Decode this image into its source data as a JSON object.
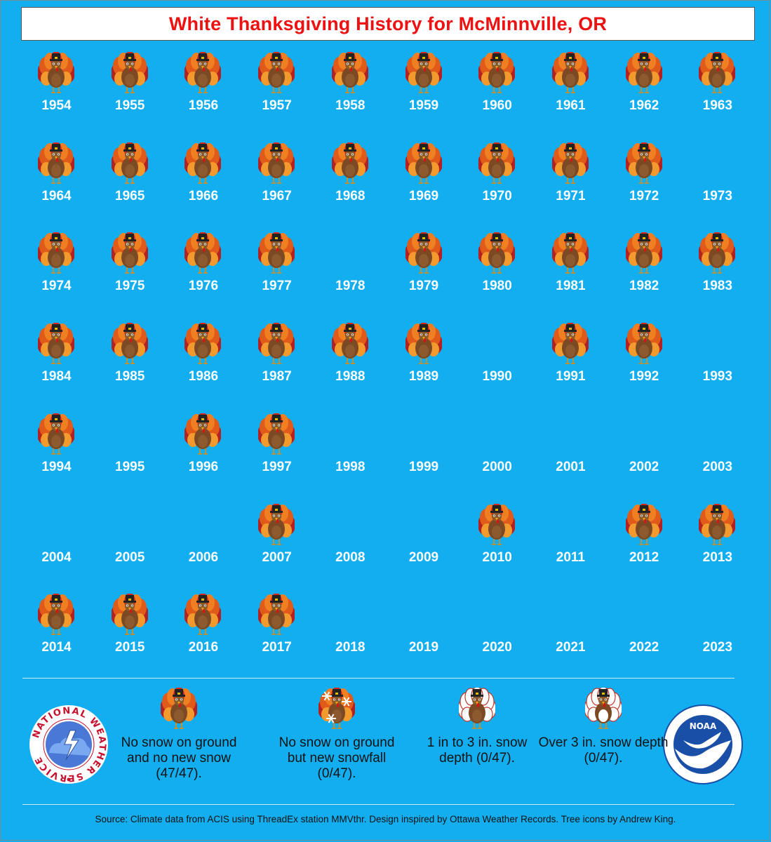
{
  "title": "White Thanksgiving History for McMinnville, OR",
  "years": [
    {
      "year": "1954",
      "category": "none"
    },
    {
      "year": "1955",
      "category": "none"
    },
    {
      "year": "1956",
      "category": "none"
    },
    {
      "year": "1957",
      "category": "none"
    },
    {
      "year": "1958",
      "category": "none"
    },
    {
      "year": "1959",
      "category": "none"
    },
    {
      "year": "1960",
      "category": "none"
    },
    {
      "year": "1961",
      "category": "none"
    },
    {
      "year": "1962",
      "category": "none"
    },
    {
      "year": "1963",
      "category": "none"
    },
    {
      "year": "1964",
      "category": "none"
    },
    {
      "year": "1965",
      "category": "none"
    },
    {
      "year": "1966",
      "category": "none"
    },
    {
      "year": "1967",
      "category": "none"
    },
    {
      "year": "1968",
      "category": "none"
    },
    {
      "year": "1969",
      "category": "none"
    },
    {
      "year": "1970",
      "category": "none"
    },
    {
      "year": "1971",
      "category": "none"
    },
    {
      "year": "1972",
      "category": "none"
    },
    {
      "year": "1973",
      "category": "missing"
    },
    {
      "year": "1974",
      "category": "none"
    },
    {
      "year": "1975",
      "category": "none"
    },
    {
      "year": "1976",
      "category": "none"
    },
    {
      "year": "1977",
      "category": "none"
    },
    {
      "year": "1978",
      "category": "missing"
    },
    {
      "year": "1979",
      "category": "none"
    },
    {
      "year": "1980",
      "category": "none"
    },
    {
      "year": "1981",
      "category": "none"
    },
    {
      "year": "1982",
      "category": "none"
    },
    {
      "year": "1983",
      "category": "none"
    },
    {
      "year": "1984",
      "category": "none"
    },
    {
      "year": "1985",
      "category": "none"
    },
    {
      "year": "1986",
      "category": "none"
    },
    {
      "year": "1987",
      "category": "none"
    },
    {
      "year": "1988",
      "category": "none"
    },
    {
      "year": "1989",
      "category": "none"
    },
    {
      "year": "1990",
      "category": "missing"
    },
    {
      "year": "1991",
      "category": "none"
    },
    {
      "year": "1992",
      "category": "none"
    },
    {
      "year": "1993",
      "category": "missing"
    },
    {
      "year": "1994",
      "category": "none"
    },
    {
      "year": "1995",
      "category": "missing"
    },
    {
      "year": "1996",
      "category": "none"
    },
    {
      "year": "1997",
      "category": "none"
    },
    {
      "year": "1998",
      "category": "missing"
    },
    {
      "year": "1999",
      "category": "missing"
    },
    {
      "year": "2000",
      "category": "missing"
    },
    {
      "year": "2001",
      "category": "missing"
    },
    {
      "year": "2002",
      "category": "missing"
    },
    {
      "year": "2003",
      "category": "missing"
    },
    {
      "year": "2004",
      "category": "missing"
    },
    {
      "year": "2005",
      "category": "missing"
    },
    {
      "year": "2006",
      "category": "missing"
    },
    {
      "year": "2007",
      "category": "none"
    },
    {
      "year": "2008",
      "category": "missing"
    },
    {
      "year": "2009",
      "category": "missing"
    },
    {
      "year": "2010",
      "category": "none"
    },
    {
      "year": "2011",
      "category": "missing"
    },
    {
      "year": "2012",
      "category": "none"
    },
    {
      "year": "2013",
      "category": "none"
    },
    {
      "year": "2014",
      "category": "none"
    },
    {
      "year": "2015",
      "category": "none"
    },
    {
      "year": "2016",
      "category": "none"
    },
    {
      "year": "2017",
      "category": "none"
    },
    {
      "year": "2018",
      "category": "missing"
    },
    {
      "year": "2019",
      "category": "missing"
    },
    {
      "year": "2020",
      "category": "missing"
    },
    {
      "year": "2021",
      "category": "missing"
    },
    {
      "year": "2022",
      "category": "missing"
    },
    {
      "year": "2023",
      "category": "missing"
    }
  ],
  "legend": [
    {
      "label": "No snow on ground and no new snow (47/47).",
      "icon": "turkey-icon"
    },
    {
      "label": "No snow on ground but new snowfall (0/47).",
      "icon": "turkey-snowflake-icon"
    },
    {
      "label": "1 in to 3 in. snow depth (0/47).",
      "icon": "turkey-light-snow-icon"
    },
    {
      "label": "Over 3 in. snow depth (0/47).",
      "icon": "turkey-heavy-snow-icon"
    }
  ],
  "logos": {
    "left": {
      "icon": "nws-logo",
      "text": "NATIONAL WEATHER SERVICE"
    },
    "right": {
      "icon": "noaa-logo",
      "text": "NOAA"
    }
  },
  "source": "Source: Climate data from ACIS using ThreadEx station MMVthr. Design inspired by Ottawa Weather Records. Tree icons by Andrew King.",
  "colors": {
    "background": "#12aef0",
    "title": "#ee1111",
    "year_text": "#ffffff"
  }
}
